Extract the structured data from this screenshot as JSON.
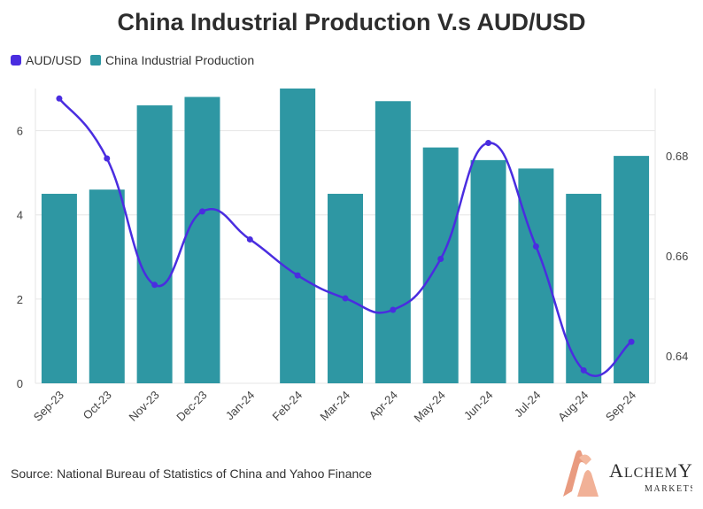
{
  "title": "China Industrial Production V.s AUD/USD",
  "source": "Source: National Bureau of Statistics of China and Yahoo Finance",
  "logo": {
    "brand": "Alchemy",
    "sub": "MARKETS"
  },
  "colors": {
    "line": "#4a2de0",
    "bar": "#2e97a3",
    "grid": "#e6e6e6",
    "logo": "#e58a6a"
  },
  "legend": [
    {
      "label": "AUD/USD",
      "kind": "line"
    },
    {
      "label": "China Industrial Production",
      "kind": "bar"
    }
  ],
  "chart_data": {
    "type": "bar",
    "title": "China Industrial Production V.s AUD/USD",
    "categories": [
      "Sep-23",
      "Oct-23",
      "Nov-23",
      "Dec-23",
      "Jan-24",
      "Feb-24",
      "Mar-24",
      "Apr-24",
      "May-24",
      "Jun-24",
      "Jul-24",
      "Aug-24",
      "Sep-24"
    ],
    "series": [
      {
        "name": "China Industrial Production",
        "type": "bar",
        "axis": "left",
        "values": [
          4.5,
          4.6,
          6.6,
          6.8,
          null,
          7.0,
          4.5,
          6.7,
          5.6,
          5.3,
          5.1,
          4.5,
          5.4
        ]
      },
      {
        "name": "AUD/USD",
        "type": "line",
        "axis": "right",
        "smooth": true,
        "values": [
          0.6915,
          0.6795,
          0.6542,
          0.6689,
          0.6633,
          0.6561,
          0.6515,
          0.6492,
          0.6594,
          0.6826,
          0.6619,
          0.6371,
          0.6428
        ]
      }
    ],
    "y_left": {
      "ticks": [
        0,
        2,
        4,
        6
      ],
      "ylim": [
        0,
        7.0
      ]
    },
    "y_right": {
      "ticks": [
        0.64,
        0.66,
        0.68
      ],
      "ylim": [
        0.6345,
        0.6935
      ]
    },
    "grid": true,
    "legend_position": "top-left"
  }
}
